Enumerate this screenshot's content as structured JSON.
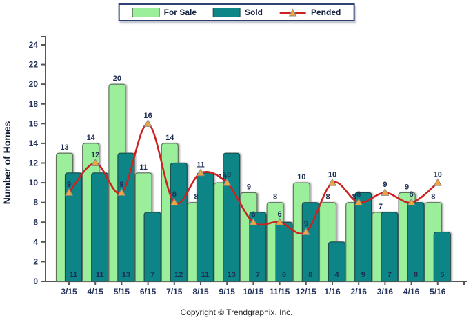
{
  "colors": {
    "marker_fill": "#F2A53C",
    "marker_stroke": "#8A8A8A",
    "axis": "#555555",
    "bar_border_for_sale": "#5F6F5F",
    "bar_border_sold": "#1D4B4B",
    "legend_border": "#2E4172",
    "value_label": "#1E2D55"
  },
  "chart_data": {
    "type": "bar",
    "subtype": "grouped-overlap-bars-with-line",
    "categories": [
      "3/15",
      "4/15",
      "5/15",
      "6/15",
      "7/15",
      "8/15",
      "9/15",
      "10/15",
      "11/15",
      "12/15",
      "1/16",
      "2/16",
      "3/16",
      "4/16",
      "5/16"
    ],
    "series": [
      {
        "name": "For Sale",
        "type": "bar",
        "color": "#9BEF9B",
        "values": [
          13,
          14,
          20,
          11,
          14,
          8,
          10,
          9,
          8,
          10,
          8,
          8,
          7,
          9,
          8
        ]
      },
      {
        "name": "Sold",
        "type": "bar",
        "color": "#0E8586",
        "values": [
          11,
          11,
          13,
          7,
          12,
          11,
          13,
          7,
          6,
          8,
          4,
          9,
          7,
          8,
          5
        ]
      },
      {
        "name": "Pended",
        "type": "line",
        "color": "#CC2222",
        "values": [
          9,
          12,
          9,
          16,
          8,
          11,
          10,
          6,
          6,
          5,
          10,
          8,
          9,
          8,
          10
        ]
      }
    ],
    "title": "",
    "xlabel": "",
    "ylabel": "Number of Homes",
    "ylim": [
      0,
      24
    ],
    "ytick_step": 2,
    "grid": false,
    "legend_position": "top-center"
  },
  "footer": {
    "copyright": "Copyright © Trendgraphix, Inc."
  }
}
